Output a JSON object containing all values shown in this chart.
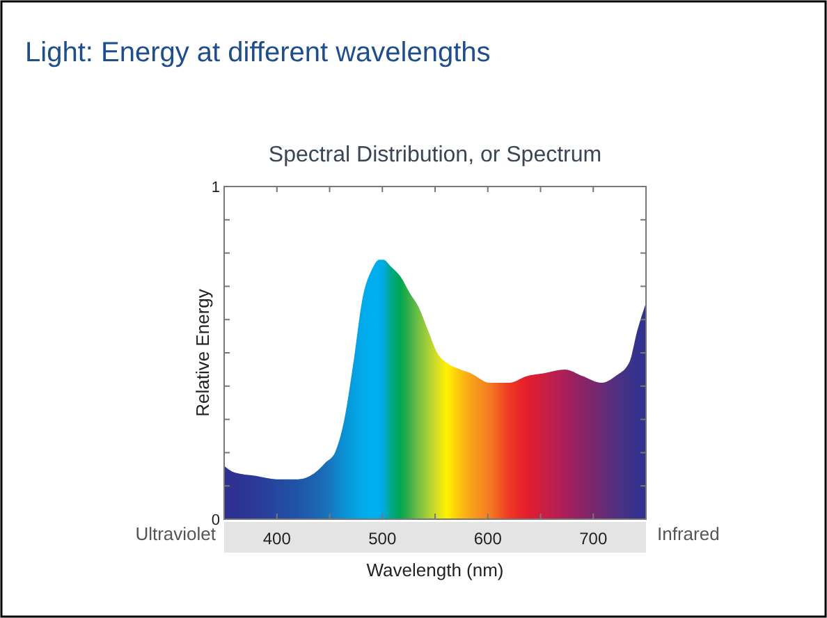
{
  "chart_data": {
    "type": "area",
    "title": "Light: Energy at different wavelengths",
    "subtitle": "Spectral Distribution, or Spectrum",
    "xlabel": "Wavelength (nm)",
    "ylabel": "Relative Energy",
    "annotations": [
      "Ultraviolet",
      "Infrared"
    ],
    "xlim": [
      350,
      750
    ],
    "xticks": [
      {
        "value": 350,
        "label": null
      },
      400,
      {
        "value": 450,
        "label": null
      },
      500,
      {
        "value": 550,
        "label": null
      },
      600,
      {
        "value": 650,
        "label": null
      },
      700,
      {
        "value": 750,
        "label": null
      }
    ],
    "ylim": [
      0,
      1
    ],
    "yticks": [
      0,
      {
        "value": 0.1,
        "label": null
      },
      {
        "value": 0.2,
        "label": null
      },
      {
        "value": 0.3,
        "label": null
      },
      {
        "value": 0.4,
        "label": null
      },
      {
        "value": 0.5,
        "label": null
      },
      {
        "value": 0.6,
        "label": null
      },
      {
        "value": 0.7,
        "label": null
      },
      {
        "value": 0.8,
        "label": null
      },
      {
        "value": 0.9,
        "label": null
      },
      1
    ],
    "grid": false,
    "x": [
      350,
      360,
      380,
      400,
      410,
      420,
      440,
      446,
      455,
      464,
      473,
      481,
      490,
      497,
      501,
      508,
      517,
      526,
      534,
      543,
      552,
      561,
      574,
      583,
      602,
      620,
      637,
      655,
      673,
      690,
      708,
      721,
      734,
      742,
      750
    ],
    "values": [
      0.16,
      0.14,
      0.13,
      0.12,
      0.12,
      0.12,
      0.15,
      0.17,
      0.2,
      0.3,
      0.48,
      0.66,
      0.75,
      0.78,
      0.78,
      0.76,
      0.73,
      0.68,
      0.64,
      0.57,
      0.5,
      0.47,
      0.45,
      0.44,
      0.41,
      0.41,
      0.43,
      0.44,
      0.45,
      0.43,
      0.41,
      0.43,
      0.47,
      0.57,
      0.65
    ],
    "colors": [
      "#2e3192",
      "#2e3192",
      "#2b3a98",
      "#25479f",
      "#224ea4",
      "#1f55a8",
      "#1b67b4",
      "#1a6fb9",
      "#1380c6",
      "#0b92d4",
      "#06a0e0",
      "#02aaea",
      "#00aeef",
      "#00aeef",
      "#00aae0",
      "#00a88a",
      "#00a651",
      "#3eaf48",
      "#72bf44",
      "#a6ce39",
      "#d7df23",
      "#fff200",
      "#fdc010",
      "#f9a51a",
      "#f47a20",
      "#ee3a24",
      "#e51d2c",
      "#c81e45",
      "#a91f5a",
      "#8a2465",
      "#6a2a75",
      "#52307f",
      "#3e3288",
      "#34328e",
      "#2e3192"
    ]
  }
}
